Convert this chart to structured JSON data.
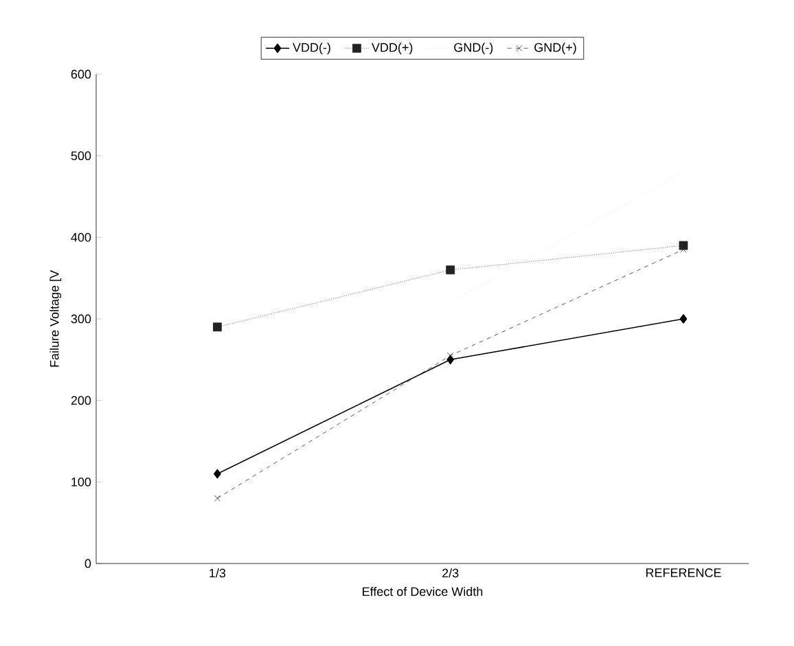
{
  "chart_data": {
    "type": "line",
    "xlabel": "Effect of Device Width",
    "ylabel": "Failure Voltage [V",
    "categories": [
      "1/3",
      "2/3",
      "REFERENCE"
    ],
    "ylim": [
      0,
      600
    ],
    "yticks": [
      0,
      100,
      200,
      300,
      400,
      500,
      600
    ],
    "grid": false,
    "legend": "top",
    "series": [
      {
        "name": "VDD(-)",
        "color": "#000000",
        "values": [
          110,
          250,
          300
        ],
        "marker": "diamond",
        "line_style": "solid"
      },
      {
        "name": "VDD(+)",
        "color": "#222222",
        "values": [
          290,
          360,
          390
        ],
        "marker": "square",
        "line_style": "dotted"
      },
      {
        "name": "GND(-)",
        "color": "#d8d8d8",
        "values": [
          null,
          320,
          480
        ],
        "marker": "none",
        "line_style": "dotted"
      },
      {
        "name": "GND(+)",
        "color": "#333333",
        "values": [
          80,
          255,
          385
        ],
        "marker": "cross",
        "line_style": "dashed"
      }
    ]
  }
}
